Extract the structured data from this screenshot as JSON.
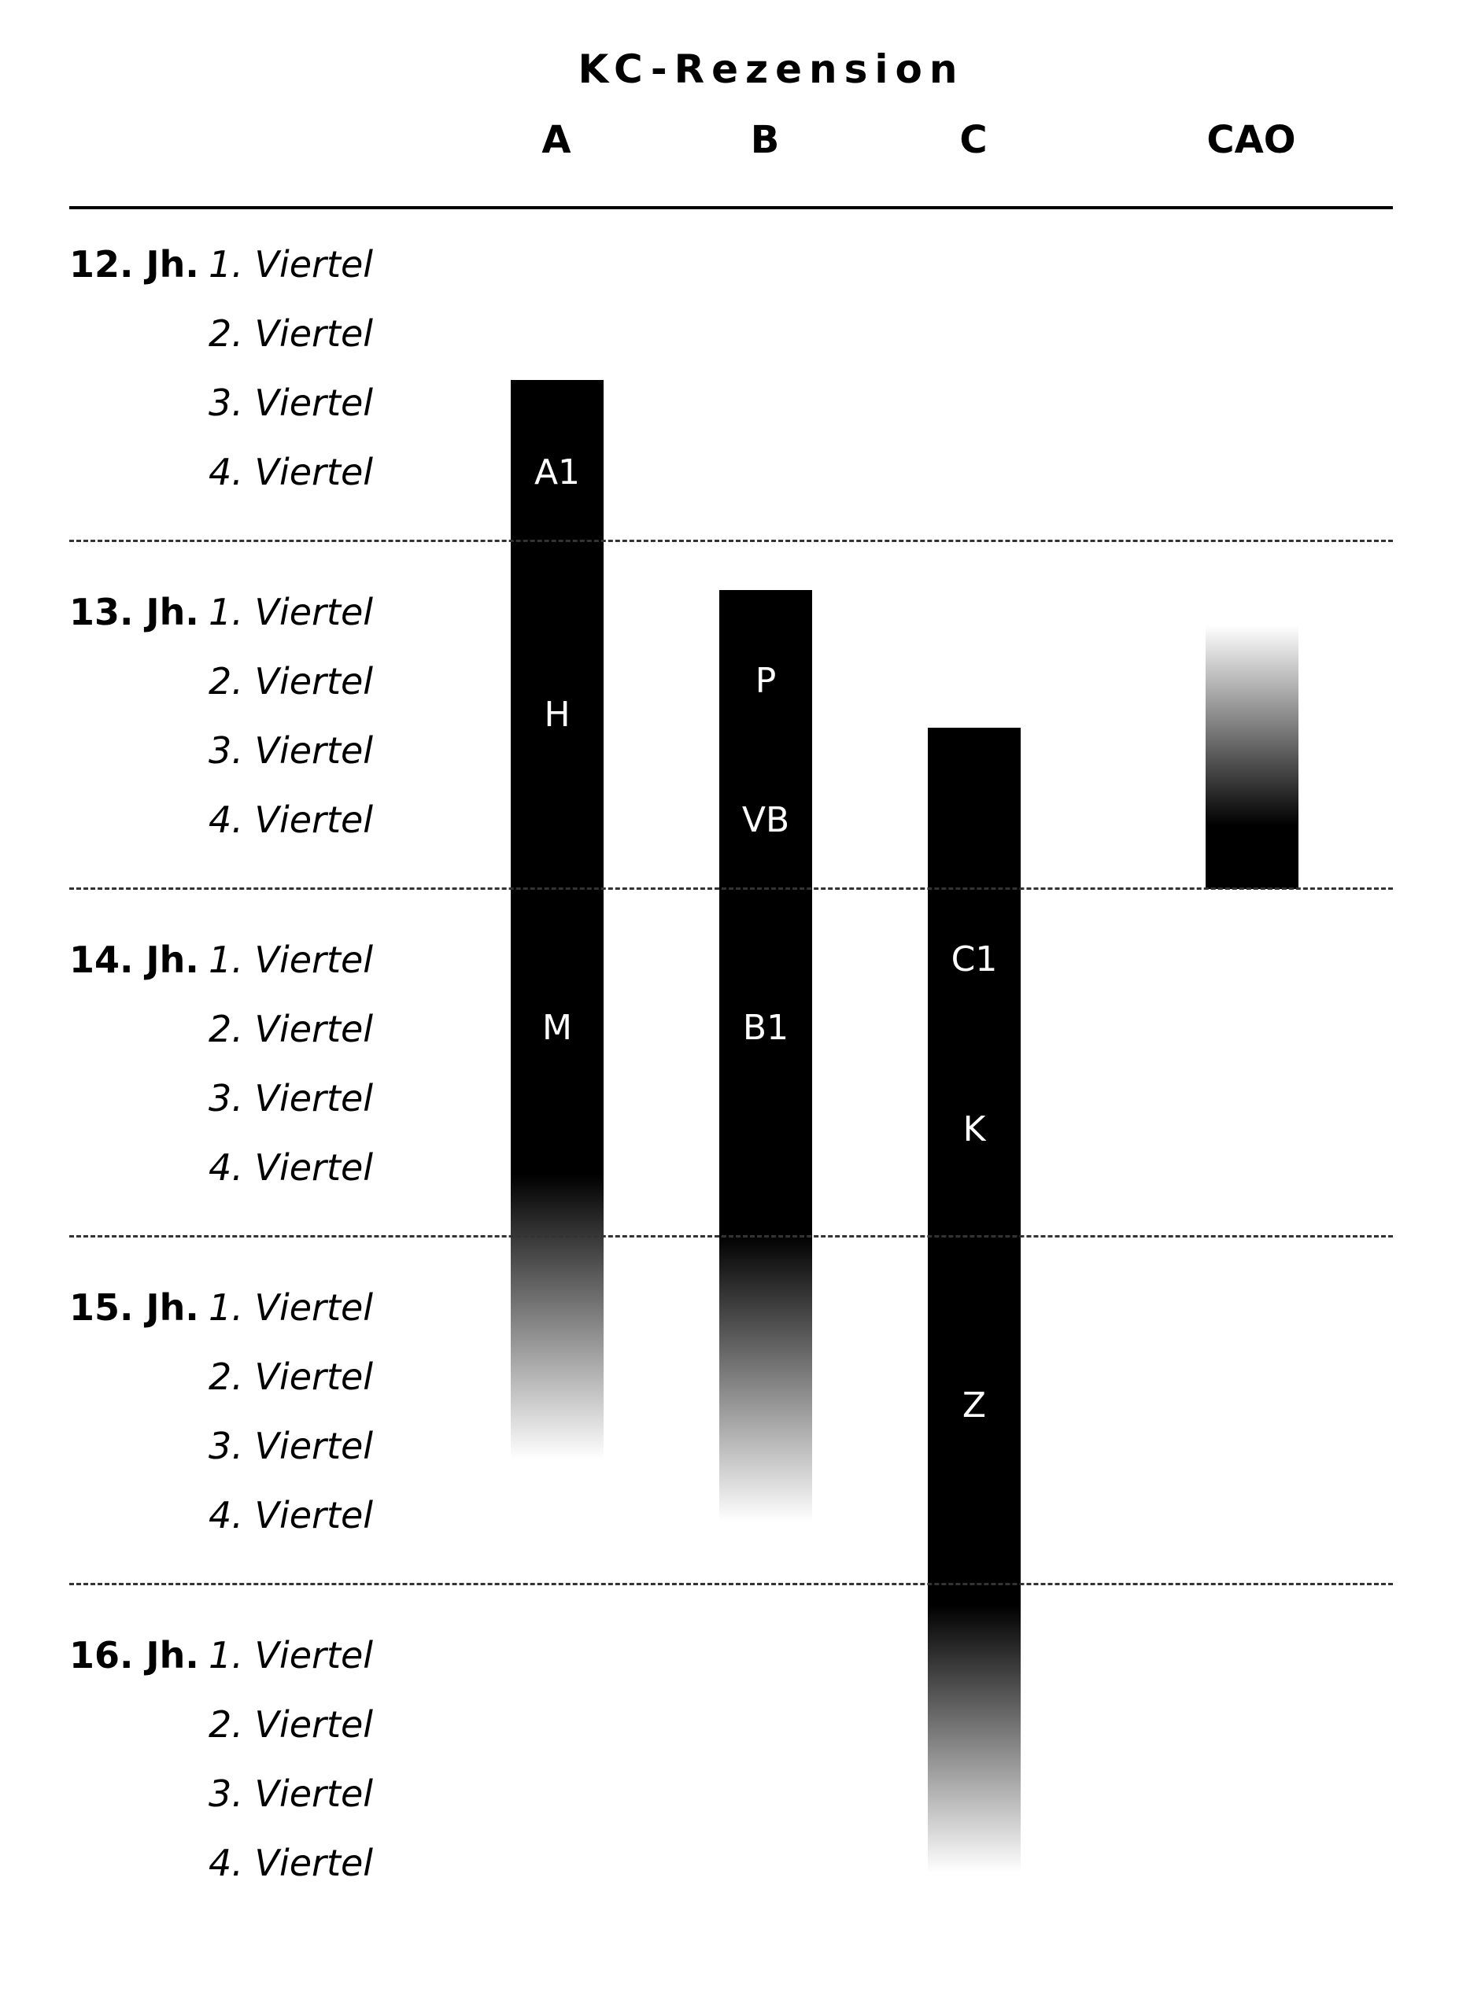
{
  "title": "KC-Rezension",
  "columns": [
    {
      "label": "A"
    },
    {
      "label": "B"
    },
    {
      "label": "C"
    },
    {
      "label": "CAO"
    }
  ],
  "centuries": [
    {
      "label": "12. Jh.",
      "quarters": [
        "1. Viertel",
        "2. Viertel",
        "3. Viertel",
        "4. Viertel"
      ]
    },
    {
      "label": "13. Jh.",
      "quarters": [
        "1. Viertel",
        "2. Viertel",
        "3. Viertel",
        "4. Viertel"
      ]
    },
    {
      "label": "14. Jh.",
      "quarters": [
        "1. Viertel",
        "2. Viertel",
        "3. Viertel",
        "4. Viertel"
      ]
    },
    {
      "label": "15. Jh.",
      "quarters": [
        "1. Viertel",
        "2. Viertel",
        "3. Viertel",
        "4. Viertel"
      ]
    },
    {
      "label": "16. Jh.",
      "quarters": [
        "1. Viertel",
        "2. Viertel",
        "3. Viertel",
        "4. Viertel"
      ]
    }
  ],
  "bars": {
    "A": {
      "labels": [
        "A1",
        "H",
        "M"
      ]
    },
    "B": {
      "labels": [
        "P",
        "VB",
        "B1"
      ]
    },
    "C": {
      "labels": [
        "C1",
        "K",
        "Z"
      ]
    },
    "CAO": {
      "labels": []
    }
  },
  "colors": {
    "bar": "#000000",
    "text": "#000000",
    "bar_text": "#ffffff",
    "background": "#ffffff"
  }
}
